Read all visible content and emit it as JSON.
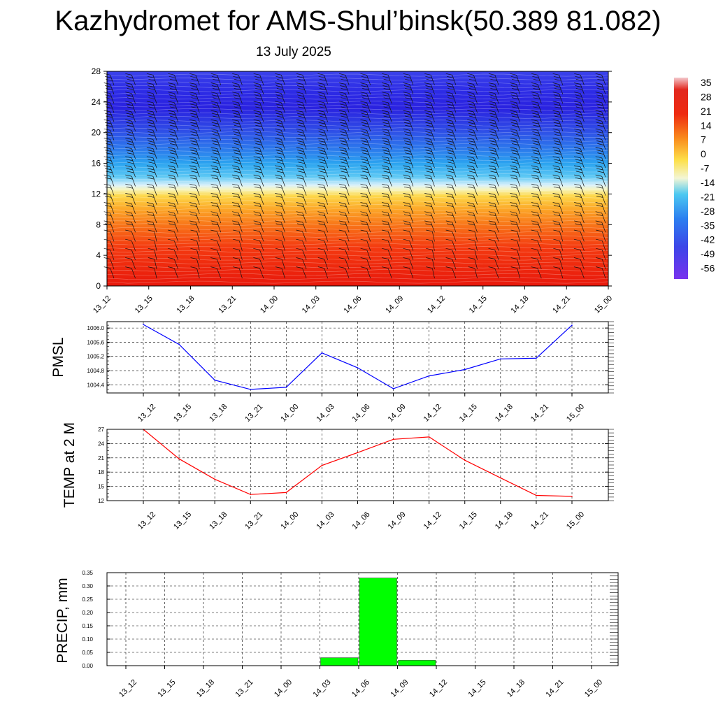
{
  "header": {
    "title": "Kazhydromet for AMS-Shul’binsk(50.389 81.082)",
    "subtitle": "13 July 2025"
  },
  "time_labels": [
    "13_12",
    "13_15",
    "13_18",
    "13_21",
    "14_00",
    "14_03",
    "14_06",
    "14_09",
    "14_12",
    "14_15",
    "14_18",
    "14_21",
    "15_00"
  ],
  "colors": {
    "pmsl_line": "#0000ff",
    "temp_line": "#ff0000",
    "precip_bar": "#00ff00",
    "precip_bar_edge": "#000000",
    "grid": "#000000"
  },
  "chart_data": [
    {
      "type": "heatmap",
      "title": "",
      "xlabel": "",
      "ylabel": "",
      "x": [
        "13_12",
        "13_15",
        "13_18",
        "13_21",
        "14_00",
        "14_03",
        "14_06",
        "14_09",
        "14_12",
        "14_15",
        "14_18",
        "14_21",
        "15_00"
      ],
      "ylim": [
        0,
        28
      ],
      "yticks": [
        0,
        4,
        8,
        12,
        16,
        20,
        24,
        28
      ],
      "description_levels_km": [
        0,
        1,
        2,
        3,
        4,
        5,
        6,
        7,
        8,
        9,
        10,
        11,
        12,
        13,
        14,
        15,
        16,
        17,
        18,
        19,
        20,
        21,
        22,
        23,
        24,
        25,
        26,
        27,
        28
      ],
      "temperature_profile_c": [
        30,
        27,
        24,
        22,
        19,
        16,
        12,
        9,
        6,
        3,
        0,
        -3,
        -7,
        -12,
        -18,
        -24,
        -30,
        -36,
        -42,
        -47,
        -51,
        -54,
        -57,
        -59,
        -60,
        -58,
        -55,
        -52,
        -49
      ],
      "colorbar": {
        "labels": [
          "35",
          "28",
          "21",
          "14",
          "7",
          "0",
          "-7",
          "-14",
          "-21",
          "-28",
          "-35",
          "-42",
          "-49",
          "-56"
        ],
        "values": [
          35,
          28,
          21,
          14,
          7,
          0,
          -7,
          -14,
          -21,
          -28,
          -35,
          -42,
          -49,
          -56
        ]
      },
      "overlay": "wind barbs"
    },
    {
      "type": "line",
      "title": "",
      "ylabel": "PMSL",
      "x": [
        "13_12",
        "13_15",
        "13_18",
        "13_21",
        "14_00",
        "14_03",
        "14_06",
        "14_09",
        "14_12",
        "14_15",
        "14_18",
        "14_21",
        "15_00"
      ],
      "series": [
        {
          "values": [
            1006.1,
            1005.54,
            1004.53,
            1004.27,
            1004.33,
            1005.3,
            1004.88,
            1004.29,
            1004.65,
            1004.83,
            1005.13,
            1005.15,
            1006.08
          ]
        }
      ],
      "ylim": [
        1004.17,
        1006.18
      ],
      "yticks": [
        1004.4,
        1004.8,
        1005.2,
        1005.6,
        1006.0
      ],
      "ytick_labels": [
        "1004.4",
        "1004.8",
        "1005.2",
        "1005.6",
        "1006.0"
      ],
      "grid": true
    },
    {
      "type": "line",
      "title": "",
      "ylabel": "TEMP at 2 M",
      "x": [
        "13_12",
        "13_15",
        "13_18",
        "13_21",
        "14_00",
        "14_03",
        "14_06",
        "14_09",
        "14_12",
        "14_15",
        "14_18",
        "14_21",
        "15_00"
      ],
      "series": [
        {
          "values": [
            27.0,
            20.8,
            16.5,
            13.3,
            13.7,
            19.4,
            22.1,
            24.9,
            25.4,
            20.5,
            16.8,
            13.1,
            12.9
          ]
        }
      ],
      "ylim": [
        12,
        27
      ],
      "yticks": [
        12,
        15,
        18,
        21,
        24,
        27
      ],
      "ytick_labels": [
        "12",
        "15",
        "18",
        "21",
        "24",
        "27"
      ],
      "grid": true
    },
    {
      "type": "bar",
      "title": "",
      "ylabel": "PRECIP, mm",
      "categories": [
        "13_12",
        "13_15",
        "13_18",
        "13_21",
        "14_00",
        "14_03",
        "14_06",
        "14_09",
        "14_12",
        "14_15",
        "14_18",
        "14_21",
        "15_00"
      ],
      "values": [
        0,
        0,
        0,
        0,
        0,
        0.03,
        0.33,
        0.02,
        0,
        0,
        0,
        0,
        0
      ],
      "ylim": [
        0,
        0.35
      ],
      "yticks": [
        0,
        0.05,
        0.1,
        0.15,
        0.2,
        0.25,
        0.3,
        0.35
      ],
      "ytick_labels": [
        "0.00",
        "0.05",
        "0.10",
        "0.15",
        "0.20",
        "0.25",
        "0.30",
        "0.35"
      ],
      "grid": true
    }
  ]
}
